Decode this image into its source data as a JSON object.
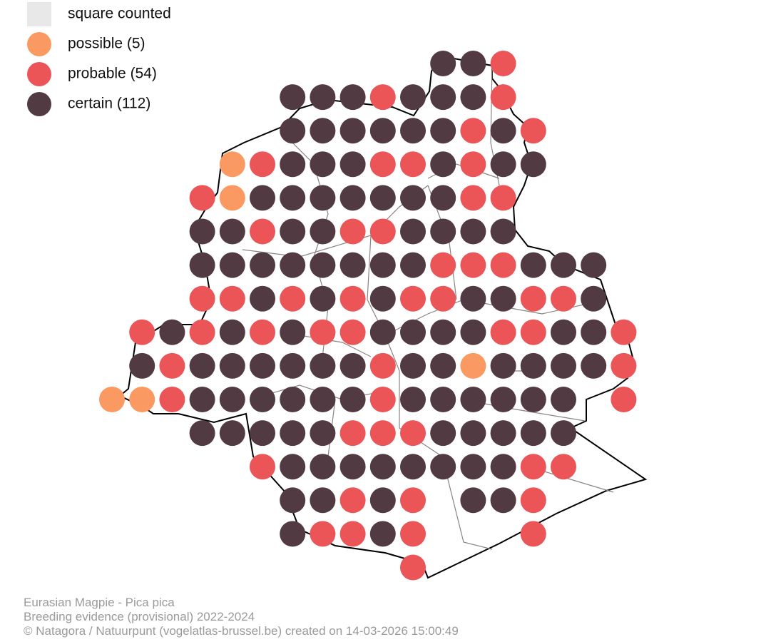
{
  "legend": [
    {
      "label": "square counted",
      "color": "#e8e8e8",
      "shape": "square"
    },
    {
      "label": "possible (5)",
      "color": "#fa9a62",
      "shape": "circle"
    },
    {
      "label": "probable (54)",
      "color": "#eb5558",
      "shape": "circle"
    },
    {
      "label": "certain (112)",
      "color": "#523a42",
      "shape": "circle"
    }
  ],
  "grid_rows": [
    {
      "start": 11,
      "evidence": [
        3,
        3,
        2
      ]
    },
    {
      "start": 6,
      "evidence": [
        3,
        3,
        3,
        2,
        3,
        3,
        3,
        2
      ]
    },
    {
      "start": 6,
      "evidence": [
        3,
        3,
        3,
        3,
        3,
        3,
        2,
        3,
        2
      ]
    },
    {
      "start": 4,
      "evidence": [
        1,
        2,
        3,
        3,
        3,
        2,
        2,
        3,
        2,
        3,
        3
      ]
    },
    {
      "start": 3,
      "evidence": [
        2,
        1,
        3,
        3,
        3,
        3,
        3,
        3,
        3,
        2,
        2
      ]
    },
    {
      "start": 3,
      "evidence": [
        3,
        3,
        2,
        3,
        3,
        2,
        2,
        3,
        3,
        3,
        3
      ]
    },
    {
      "start": 3,
      "evidence": [
        3,
        3,
        3,
        3,
        3,
        3,
        3,
        3,
        2,
        2,
        2,
        3,
        3,
        3
      ]
    },
    {
      "start": 3,
      "evidence": [
        2,
        2,
        3,
        2,
        3,
        2,
        3,
        2,
        2,
        3,
        3,
        2,
        2,
        3
      ]
    },
    {
      "start": 1,
      "evidence": [
        2,
        3,
        2,
        3,
        2,
        3,
        2,
        2,
        3,
        3,
        3,
        3,
        2,
        2,
        3,
        3,
        2
      ]
    },
    {
      "start": 1,
      "evidence": [
        3,
        2,
        3,
        3,
        3,
        3,
        3,
        3,
        2,
        3,
        3,
        1,
        3,
        3,
        3,
        3,
        2
      ]
    },
    {
      "start": 0,
      "evidence": [
        1,
        1,
        2,
        3,
        3,
        3,
        3,
        3,
        3,
        2,
        3,
        3,
        3,
        3,
        3,
        3,
        null,
        2
      ]
    },
    {
      "start": 3,
      "evidence": [
        3,
        3,
        3,
        3,
        3,
        2,
        2,
        2,
        3,
        3,
        3,
        3,
        3
      ]
    },
    {
      "start": 5,
      "evidence": [
        2,
        3,
        3,
        3,
        3,
        3,
        3,
        3,
        3,
        2,
        2
      ]
    },
    {
      "start": 6,
      "evidence": [
        3,
        3,
        2,
        3,
        2,
        null,
        3,
        3,
        2
      ]
    },
    {
      "start": 6,
      "evidence": [
        3,
        2,
        2,
        3,
        2,
        null,
        null,
        null,
        2
      ]
    },
    {
      "start": 10,
      "evidence": [
        2
      ]
    }
  ],
  "footer": [
    "Eurasian Magpie - Pica pica",
    "Breeding evidence (provisional) 2022-2024",
    "© Natagora / Natuurpunt (vogelatlas-brussel.be) created on 14-03-2026 15:00:49"
  ]
}
